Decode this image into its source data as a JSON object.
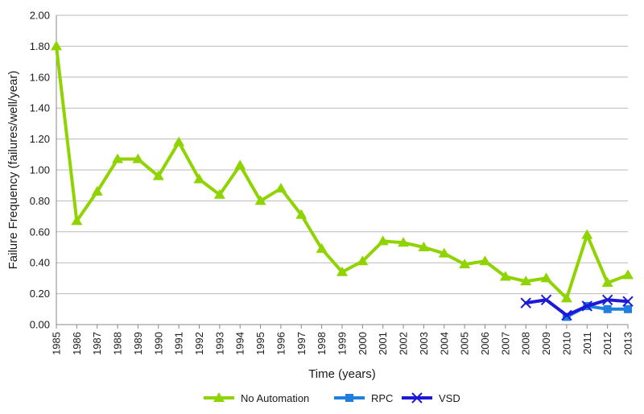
{
  "chart_data": {
    "type": "line",
    "title": "",
    "xlabel": "Time (years)",
    "ylabel": "Failure Frequency (failures/well/year)",
    "ylim": [
      0,
      2.0
    ],
    "yticks": [
      "0.00",
      "0.20",
      "0.40",
      "0.60",
      "0.80",
      "1.00",
      "1.20",
      "1.40",
      "1.60",
      "1.80",
      "2.00"
    ],
    "categories": [
      "1985",
      "1986",
      "1987",
      "1988",
      "1989",
      "1990",
      "1991",
      "1992",
      "1993",
      "1994",
      "1995",
      "1996",
      "1997",
      "1998",
      "1999",
      "2000",
      "2001",
      "2002",
      "2003",
      "2004",
      "2005",
      "2006",
      "2007",
      "2008",
      "2009",
      "2010",
      "2011",
      "2012",
      "2013"
    ],
    "grid": true,
    "legend_position": "bottom",
    "series": [
      {
        "name": "No Automation",
        "color": "#8fd400",
        "marker": "triangle",
        "values": [
          1.8,
          0.67,
          0.86,
          1.07,
          1.07,
          0.96,
          1.18,
          0.94,
          0.84,
          1.03,
          0.8,
          0.88,
          0.71,
          0.49,
          0.34,
          0.41,
          0.54,
          0.53,
          0.5,
          0.46,
          0.39,
          0.41,
          0.31,
          0.28,
          0.3,
          0.17,
          0.58,
          0.27,
          0.32
        ]
      },
      {
        "name": "RPC",
        "color": "#1e7fe0",
        "marker": "square",
        "values": [
          null,
          null,
          null,
          null,
          null,
          null,
          null,
          null,
          null,
          null,
          null,
          null,
          null,
          null,
          null,
          null,
          null,
          null,
          null,
          null,
          null,
          null,
          null,
          null,
          null,
          0.05,
          0.12,
          0.1,
          0.1
        ]
      },
      {
        "name": "VSD",
        "color": "#1c1ad8",
        "marker": "x",
        "values": [
          null,
          null,
          null,
          null,
          null,
          null,
          null,
          null,
          null,
          null,
          null,
          null,
          null,
          null,
          null,
          null,
          null,
          null,
          null,
          null,
          null,
          null,
          null,
          0.14,
          0.16,
          0.06,
          0.12,
          0.16,
          0.15
        ]
      }
    ]
  }
}
